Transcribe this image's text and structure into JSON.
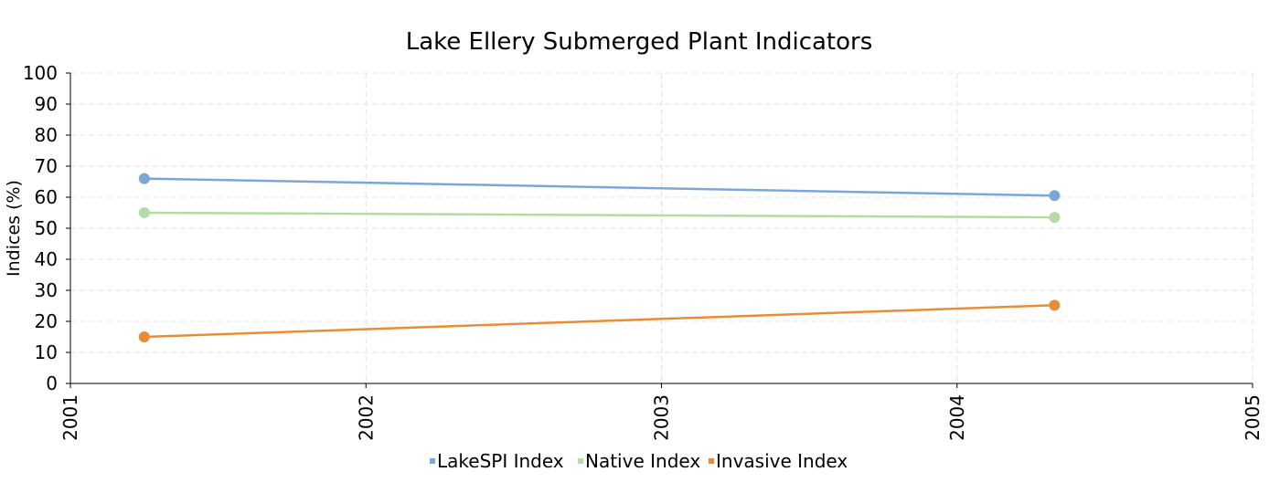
{
  "chart_data": {
    "type": "line",
    "title": "Lake Ellery Submerged Plant Indicators",
    "xlabel": "",
    "ylabel": "Indices (%)",
    "xlim": [
      2001,
      2005
    ],
    "ylim": [
      0,
      100
    ],
    "x_ticks": [
      "2001",
      "2002",
      "2003",
      "2004",
      "2005"
    ],
    "y_ticks": [
      "0",
      "10",
      "20",
      "30",
      "40",
      "50",
      "60",
      "70",
      "80",
      "90",
      "100"
    ],
    "grid": true,
    "legend_position": "bottom",
    "series": [
      {
        "name": "LakeSPI Index",
        "color": "#7ba7d7",
        "x": [
          2001.25,
          2004.33
        ],
        "values": [
          66,
          60.5
        ]
      },
      {
        "name": "Native Index",
        "color": "#b3dba3",
        "x": [
          2001.25,
          2004.33
        ],
        "values": [
          55,
          53.5
        ]
      },
      {
        "name": "Invasive Index",
        "color": "#e88d35",
        "x": [
          2001.25,
          2004.33
        ],
        "values": [
          15,
          25.2
        ]
      }
    ]
  }
}
